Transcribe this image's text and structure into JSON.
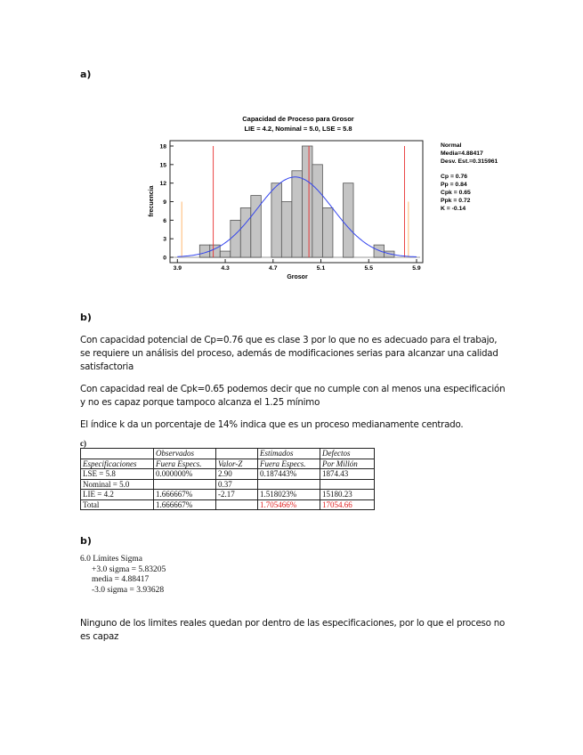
{
  "section_a": {
    "label": "a)"
  },
  "chart_data": {
    "type": "bar",
    "title": "Capacidad de Proceso para  Grosor",
    "subtitle": "LIE = 4.2, Nominal = 5.0, LSE = 5.8",
    "xlabel": "Grosor",
    "ylabel": "frecuencia",
    "xlim": [
      3.9,
      5.9
    ],
    "ylim": [
      0,
      18
    ],
    "xticks": [
      "3.9",
      "4.3",
      "4.7",
      "5.1",
      "5.5",
      "5.9"
    ],
    "yticks": [
      "0",
      "3",
      "6",
      "9",
      "12",
      "15",
      "18"
    ],
    "bin_width": 0.0857,
    "bin_centers": [
      4.129,
      4.214,
      4.3,
      4.386,
      4.471,
      4.557,
      4.643,
      4.729,
      4.814,
      4.9,
      4.986,
      5.071,
      5.157,
      5.243,
      5.329,
      5.414,
      5.5,
      5.586,
      5.671
    ],
    "counts": [
      2,
      2,
      1,
      6,
      8,
      10,
      0,
      12,
      9,
      14,
      18,
      15,
      8,
      0,
      12,
      0,
      0,
      2,
      1
    ],
    "spec_lines": [
      4.2,
      5.0,
      5.8
    ],
    "sigma_lines": [
      3.93628,
      5.83205
    ],
    "normal_fit": {
      "mean": 4.88417,
      "sd": 0.315961
    },
    "colors": {
      "bars": "#c4c4c4",
      "curve": "#3344ee",
      "spec": "#e83030",
      "sigma": "#ffb060"
    },
    "legend": [
      "Normal",
      "Media=4.88417",
      "Desv. Est.=0.315961"
    ],
    "stats": [
      "Cp = 0.76",
      "Pp = 0.84",
      "Cpk = 0.65",
      "Ppk = 0.72",
      "K = -0.14"
    ]
  },
  "section_b1": {
    "label": "b)",
    "paragraphs": [
      "Con capacidad potencial de Cp=0.76 que es clase 3 por lo que no es adecuado para el trabajo, se requiere un análisis del proceso, además de modificaciones serias para alcanzar una calidad satisfactoria",
      "Con capacidad real de Cpk=0.65 podemos decir que no cumple con al menos una especificación y no es capaz porque tampoco alcanza el 1.25 mínimo",
      "El índice k da un porcentaje de 14% indica que es un proceso medianamente centrado."
    ]
  },
  "section_c": {
    "label": "c)",
    "header1": [
      "",
      "Observados",
      "",
      "Estimados",
      "Defectos"
    ],
    "header2": [
      "Especificaciones",
      "Fuera Especs.",
      "Valor-Z",
      "Fuera Especs.",
      "Por Millón"
    ],
    "rows": [
      [
        "LSE = 5.8",
        "0.000000%",
        "2.90",
        "0.187443%",
        "1874.43"
      ],
      [
        "Nominal = 5.0",
        "",
        "0.37",
        "",
        ""
      ],
      [
        "LIE = 4.2",
        "1.666667%",
        "-2.17",
        "1.518023%",
        "15180.23"
      ],
      [
        "Total",
        "1.666667%",
        "",
        "1.705466%",
        "17054.66"
      ]
    ]
  },
  "section_b2": {
    "label": "b)",
    "sigma_title": "6.0 Límites Sigma",
    "sigma_lines": [
      "+3.0 sigma = 5.83205",
      "media = 4.88417",
      "-3.0 sigma = 3.93628"
    ],
    "conclusion": "Ninguno de los limites reales quedan por dentro de las especificaciones, por lo que el proceso no es capaz"
  }
}
